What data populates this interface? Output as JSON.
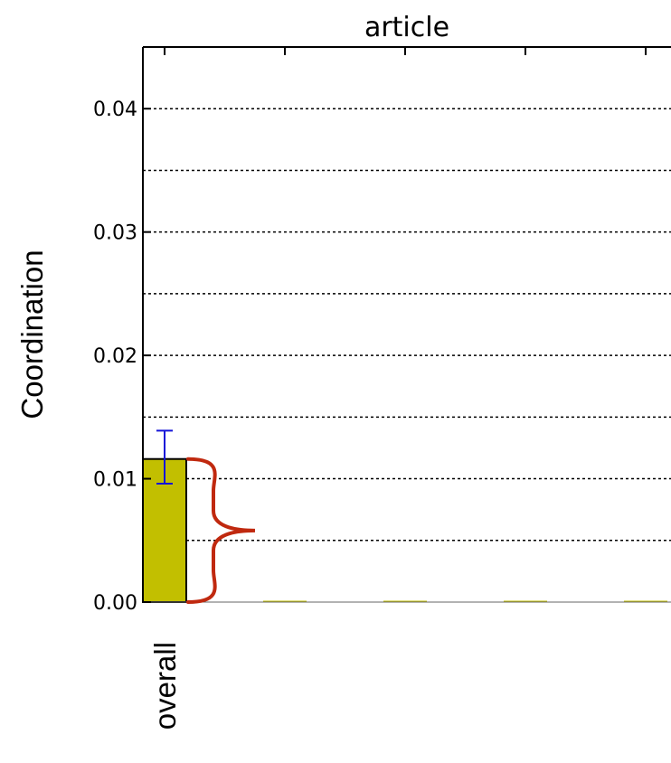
{
  "chart_data": {
    "type": "bar",
    "title": "article",
    "xlabel": "",
    "ylabel": "Coordination",
    "categories": [
      "overall",
      "",
      "",
      "",
      ""
    ],
    "values": [
      0.0116,
      0,
      0,
      0,
      0
    ],
    "error_bars": [
      {
        "category": "overall",
        "low": 0.0096,
        "high": 0.0139
      }
    ],
    "ylim": [
      0,
      0.045
    ],
    "yticks": [
      "0.00",
      "0.01",
      "0.02",
      "0.03",
      "0.04"
    ],
    "grid": true,
    "grid_style": "dotted",
    "legend": "none",
    "annotation": "red curly brace spanning the overall bar height"
  },
  "colors": {
    "bar_fill": "#c2bf00",
    "bar_edge": "#000000",
    "error_bar": "#1414d8",
    "brace": "#c0290f",
    "grid": "#000000",
    "axis": "#000000"
  }
}
